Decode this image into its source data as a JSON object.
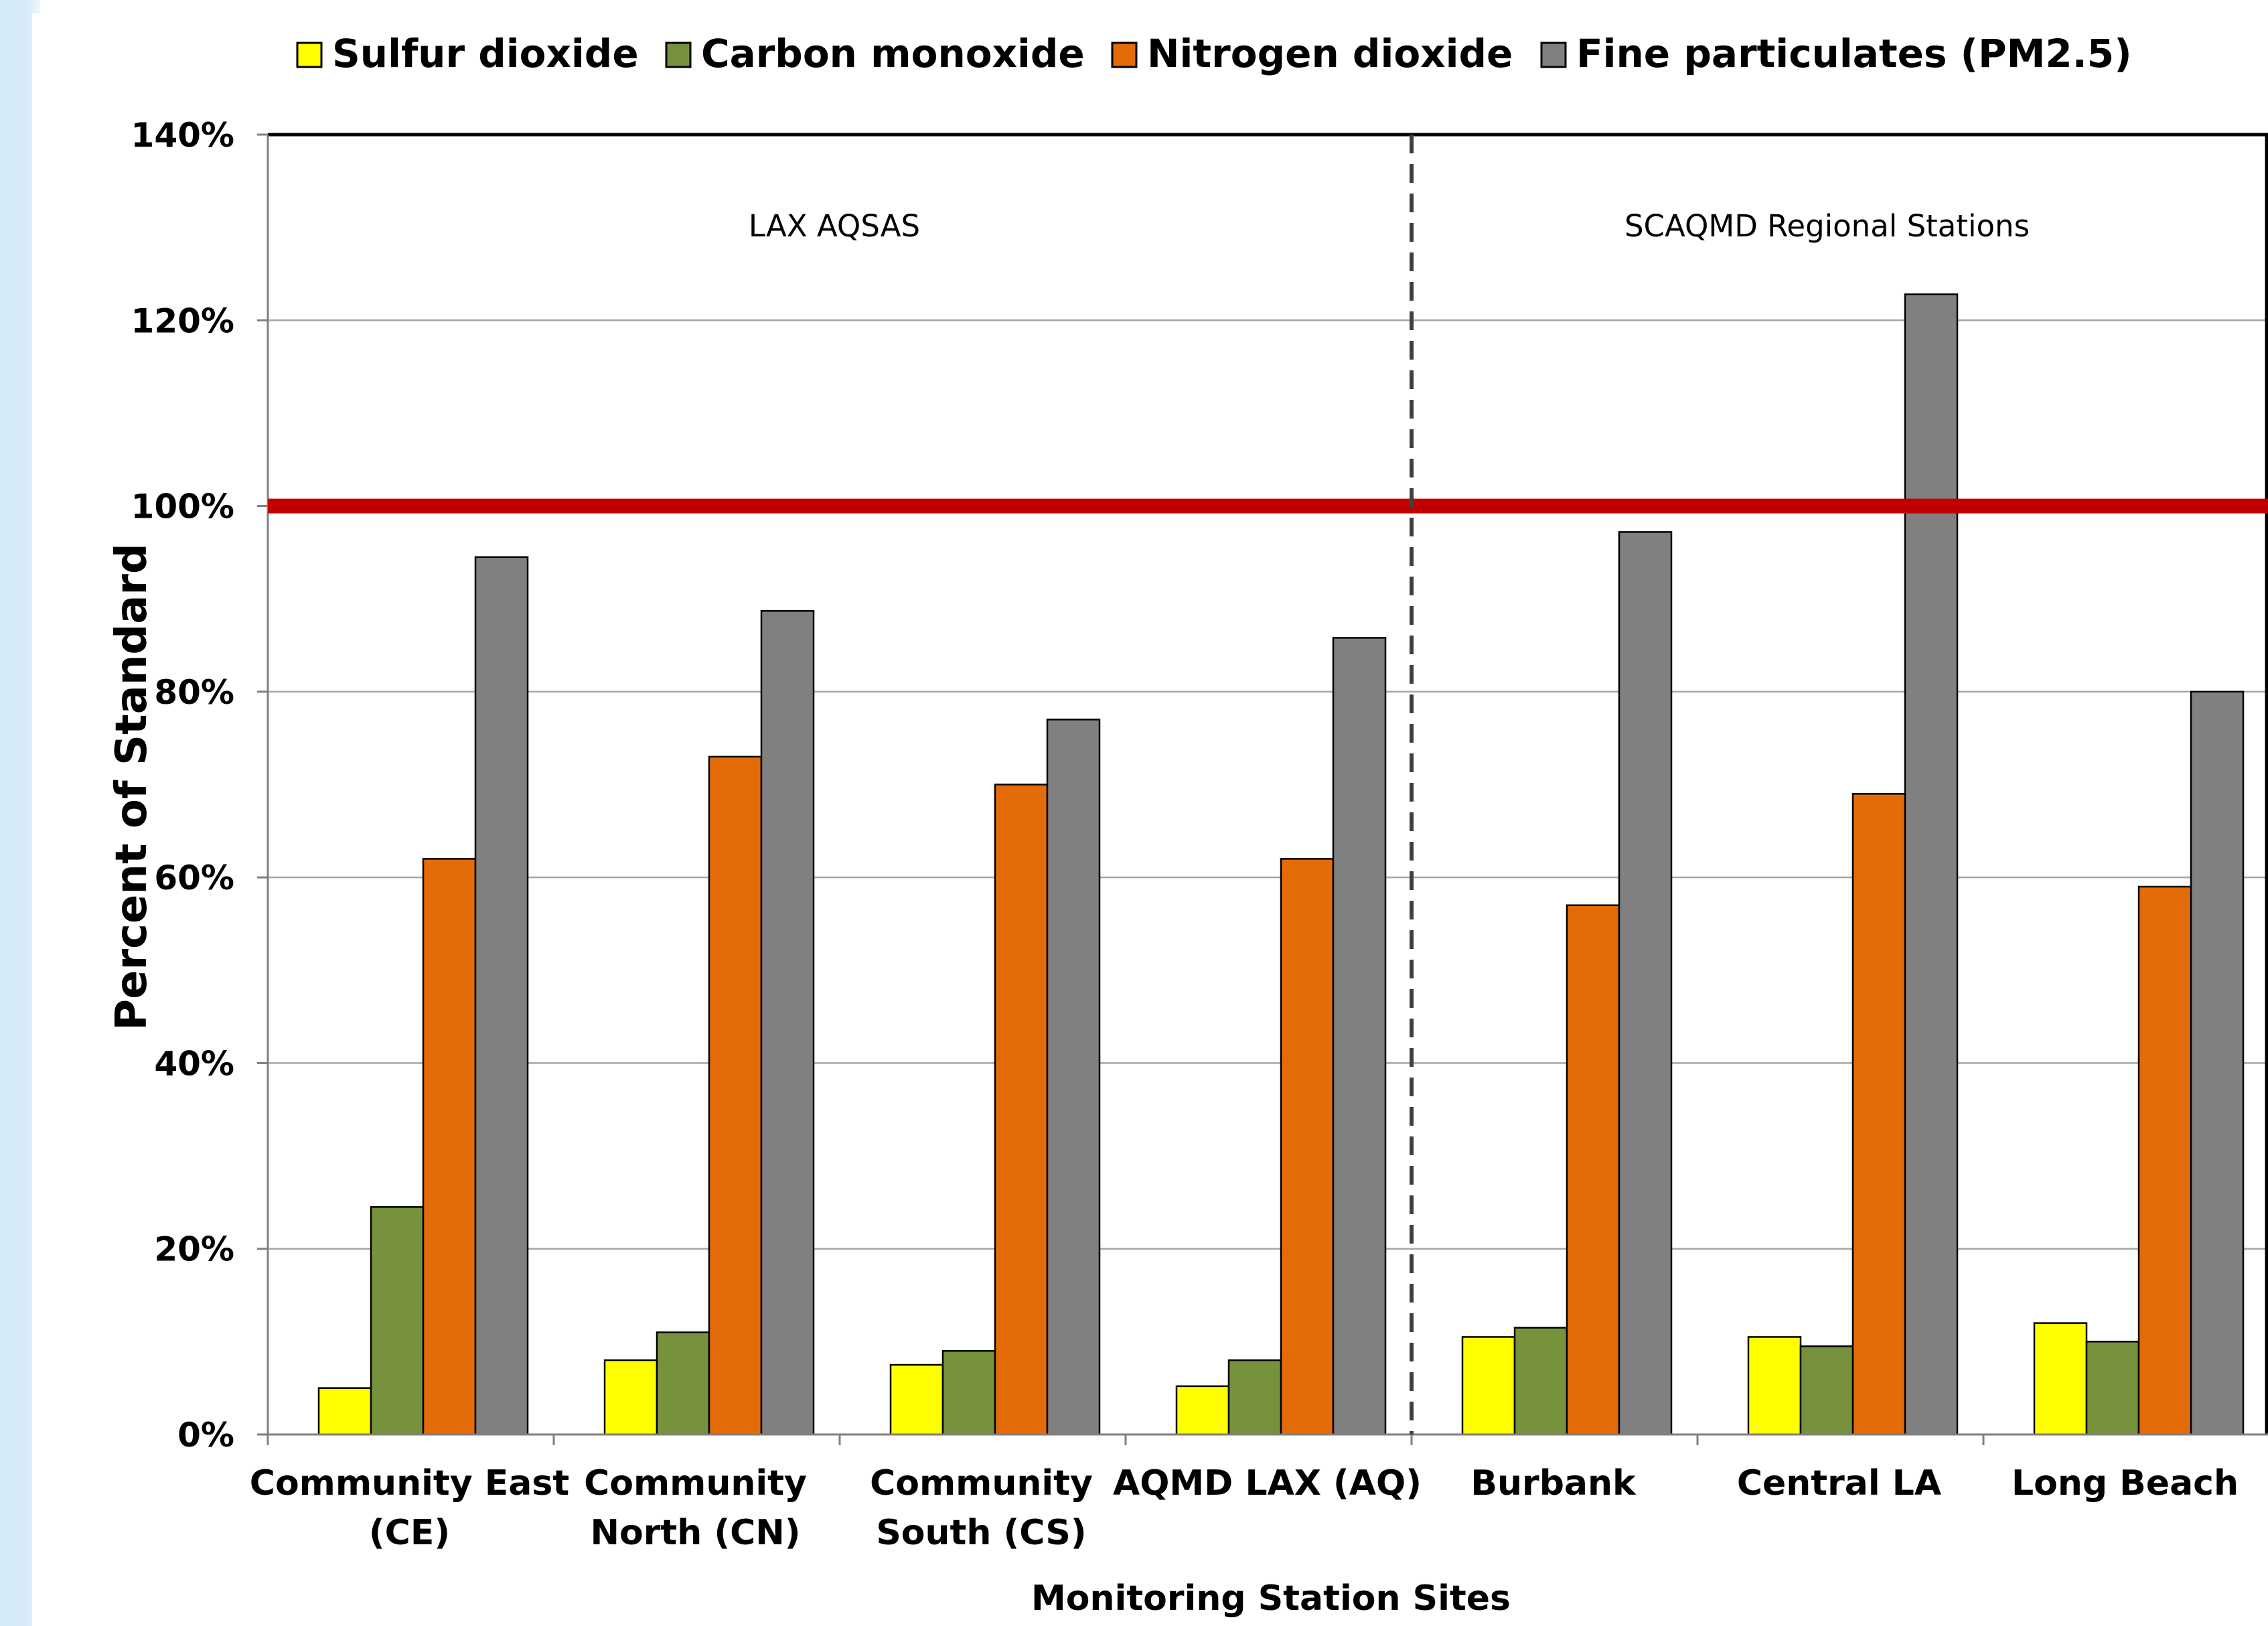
{
  "chart_data": {
    "type": "bar",
    "categories": [
      [
        "Community East",
        "(CE)"
      ],
      [
        "Community",
        "North (CN)"
      ],
      [
        "Community",
        "South (CS)"
      ],
      [
        "AQMD LAX (AQ)"
      ],
      [
        "Burbank"
      ],
      [
        "Central LA"
      ],
      [
        "Long Beach"
      ]
    ],
    "series": [
      {
        "name": "Sulfur dioxide",
        "color": "#ffff00",
        "values": [
          5,
          8,
          7.5,
          5.2,
          10.5,
          10.5,
          12
        ]
      },
      {
        "name": "Carbon monoxide",
        "color": "#76923c",
        "values": [
          24.5,
          11,
          9,
          8,
          11.5,
          9.5,
          10
        ]
      },
      {
        "name": "Nitrogen dioxide",
        "color": "#e36c09",
        "values": [
          62,
          73,
          70,
          62,
          57,
          69,
          59
        ]
      },
      {
        "name": "Fine particulates (PM2.5)",
        "color": "#808080",
        "values": [
          94.5,
          88.7,
          77,
          85.8,
          97.2,
          122.8,
          80
        ]
      }
    ],
    "ylabel": "Percent of Standard",
    "xlabel": "Monitoring Station Sites",
    "ylim": [
      0,
      140
    ],
    "yticks": [
      0,
      20,
      40,
      60,
      80,
      100,
      120,
      140
    ],
    "ytick_labels": [
      "0%",
      "20%",
      "40%",
      "60%",
      "80%",
      "100%",
      "120%",
      "140%"
    ],
    "grid": true,
    "legend_position": "top",
    "reference_line": {
      "value": 100,
      "color": "#c00000"
    },
    "divider_after_category": 4,
    "region_labels": [
      "LAX AQSAS",
      "SCAQMD Regional Stations"
    ]
  }
}
